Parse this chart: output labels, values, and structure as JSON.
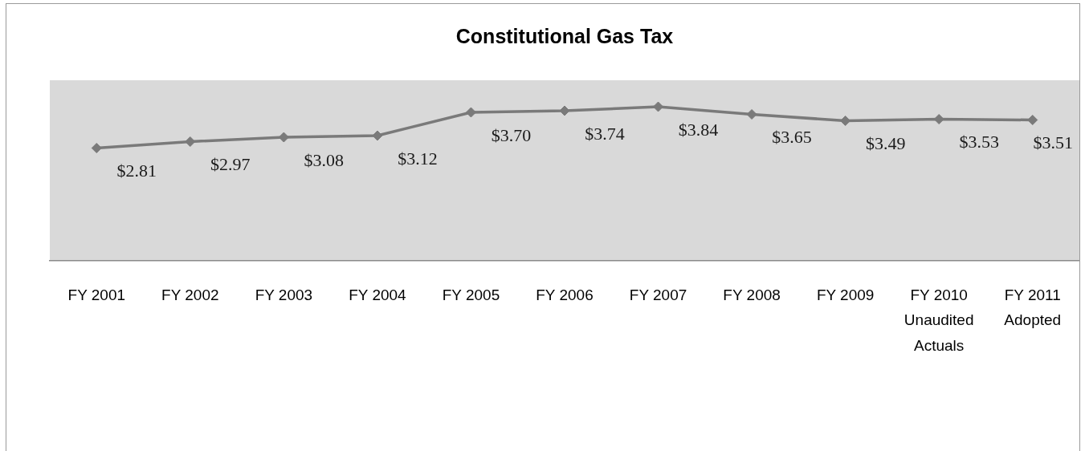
{
  "chart_data": {
    "type": "line",
    "title": "Constitutional Gas Tax",
    "categories": [
      "FY 2001",
      "FY 2002",
      "FY 2003",
      "FY 2004",
      "FY 2005",
      "FY 2006",
      "FY 2007",
      "FY 2008",
      "FY 2009",
      "FY 2010 Unaudited Actuals",
      "FY 2011 Adopted"
    ],
    "values": [
      2.81,
      2.97,
      3.08,
      3.12,
      3.7,
      3.74,
      3.84,
      3.65,
      3.49,
      3.53,
      3.51
    ],
    "value_labels": [
      "$2.81",
      "$2.97",
      "$3.08",
      "$3.12",
      "$3.70",
      "$3.74",
      "$3.84",
      "$3.65",
      "$3.49",
      "$3.53",
      "$3.51"
    ],
    "color": "#7a7a7a",
    "marker": "diamond",
    "line_style": "solid",
    "ylim": [
      0,
      4.5
    ],
    "tick_labels": "x",
    "grid": false,
    "legend": false
  }
}
